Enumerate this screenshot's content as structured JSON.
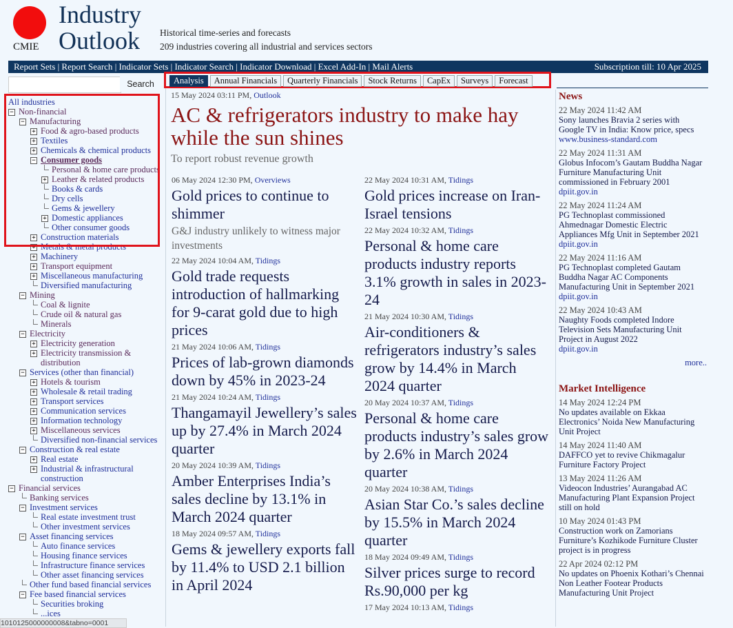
{
  "header": {
    "logo_text": "CMIE",
    "title_line1": "Industry",
    "title_line2": "Outlook",
    "tagline1": "Historical time-series and forecasts",
    "tagline2": "209 industries covering all industrial and services sectors"
  },
  "nav": {
    "links": [
      "Report Sets",
      "Report Search",
      "Indicator Sets",
      "Indicator Search",
      "Indicator Download",
      "Excel Add-In",
      "Mail Alerts"
    ],
    "subscription": "Subscription till: 10 Apr 2025"
  },
  "search": {
    "value": "",
    "button": "Search"
  },
  "tabs": [
    {
      "label": "Analysis",
      "active": true
    },
    {
      "label": "Annual Financials"
    },
    {
      "label": "Quarterly Financials"
    },
    {
      "label": "Stock Returns"
    },
    {
      "label": "CapEx"
    },
    {
      "label": "Surveys"
    },
    {
      "label": "Forecast"
    }
  ],
  "tree": [
    {
      "label": "All industries",
      "depth": 0,
      "toggle": "none"
    },
    {
      "label": "Non-financial",
      "depth": 1,
      "toggle": "minus",
      "visited": true
    },
    {
      "label": "Manufacturing",
      "depth": 2,
      "toggle": "minus",
      "visited": true
    },
    {
      "label": "Food & agro-based products",
      "depth": 3,
      "toggle": "plus",
      "visited": true
    },
    {
      "label": "Textiles",
      "depth": 3,
      "toggle": "plus"
    },
    {
      "label": "Chemicals & chemical products",
      "depth": 3,
      "toggle": "plus"
    },
    {
      "label": "Consumer goods",
      "depth": 3,
      "toggle": "minus",
      "visited": true,
      "selected": true
    },
    {
      "label": "Personal & home care products",
      "depth": 4,
      "toggle": "leaf",
      "visited": true
    },
    {
      "label": "Leather & related products",
      "depth": 4,
      "toggle": "plus",
      "visited": true
    },
    {
      "label": "Books & cards",
      "depth": 4,
      "toggle": "leaf"
    },
    {
      "label": "Dry cells",
      "depth": 4,
      "toggle": "leaf"
    },
    {
      "label": "Gems & jewellery",
      "depth": 4,
      "toggle": "leaf"
    },
    {
      "label": "Domestic appliances",
      "depth": 4,
      "toggle": "plus"
    },
    {
      "label": "Other consumer goods",
      "depth": 4,
      "toggle": "leaf"
    },
    {
      "label": "Construction materials",
      "depth": 3,
      "toggle": "plus"
    },
    {
      "label": "Metals & metal products",
      "depth": 3,
      "toggle": "plus"
    },
    {
      "label": "Machinery",
      "depth": 3,
      "toggle": "plus"
    },
    {
      "label": "Transport equipment",
      "depth": 3,
      "toggle": "plus",
      "visited": true
    },
    {
      "label": "Miscellaneous manufacturing",
      "depth": 3,
      "toggle": "plus"
    },
    {
      "label": "Diversified manufacturing",
      "depth": 3,
      "toggle": "leaf"
    },
    {
      "label": "Mining",
      "depth": 2,
      "toggle": "minus",
      "visited": true
    },
    {
      "label": "Coal & lignite",
      "depth": 3,
      "toggle": "leaf",
      "visited": true
    },
    {
      "label": "Crude oil & natural gas",
      "depth": 3,
      "toggle": "leaf",
      "visited": true
    },
    {
      "label": "Minerals",
      "depth": 3,
      "toggle": "leaf",
      "visited": true
    },
    {
      "label": "Electricity",
      "depth": 2,
      "toggle": "minus",
      "visited": true
    },
    {
      "label": "Electricity generation",
      "depth": 3,
      "toggle": "plus",
      "visited": true
    },
    {
      "label": "Electricity transmission & distribution",
      "depth": 3,
      "toggle": "plus",
      "visited": true
    },
    {
      "label": "Services (other than financial)",
      "depth": 2,
      "toggle": "minus"
    },
    {
      "label": "Hotels & tourism",
      "depth": 3,
      "toggle": "plus",
      "visited": true
    },
    {
      "label": "Wholesale & retail trading",
      "depth": 3,
      "toggle": "plus"
    },
    {
      "label": "Transport services",
      "depth": 3,
      "toggle": "plus"
    },
    {
      "label": "Communication services",
      "depth": 3,
      "toggle": "plus"
    },
    {
      "label": "Information technology",
      "depth": 3,
      "toggle": "plus"
    },
    {
      "label": "Miscellaneous services",
      "depth": 3,
      "toggle": "plus",
      "visited": true
    },
    {
      "label": "Diversified non-financial services",
      "depth": 3,
      "toggle": "leaf"
    },
    {
      "label": "Construction & real estate",
      "depth": 2,
      "toggle": "minus"
    },
    {
      "label": "Real estate",
      "depth": 3,
      "toggle": "plus"
    },
    {
      "label": "Industrial & infrastructural construction",
      "depth": 3,
      "toggle": "plus"
    },
    {
      "label": "Financial services",
      "depth": 1,
      "toggle": "minus",
      "visited": true
    },
    {
      "label": "Banking services",
      "depth": 2,
      "toggle": "leaf",
      "visited": true
    },
    {
      "label": "Investment services",
      "depth": 2,
      "toggle": "minus"
    },
    {
      "label": "Real estate investment trust",
      "depth": 3,
      "toggle": "leaf"
    },
    {
      "label": "Other investment services",
      "depth": 3,
      "toggle": "leaf"
    },
    {
      "label": "Asset financing services",
      "depth": 2,
      "toggle": "minus"
    },
    {
      "label": "Auto finance services",
      "depth": 3,
      "toggle": "leaf"
    },
    {
      "label": "Housing finance services",
      "depth": 3,
      "toggle": "leaf"
    },
    {
      "label": "Infrastructure finance services",
      "depth": 3,
      "toggle": "leaf"
    },
    {
      "label": "Other asset financing services",
      "depth": 3,
      "toggle": "leaf"
    },
    {
      "label": "Other fund based financial services",
      "depth": 2,
      "toggle": "leaf"
    },
    {
      "label": "Fee based financial services",
      "depth": 2,
      "toggle": "minus"
    },
    {
      "label": "Securities broking",
      "depth": 3,
      "toggle": "leaf"
    },
    {
      "label": "...ices",
      "depth": 3,
      "toggle": "leaf"
    }
  ],
  "hero": {
    "date": "15 May 2024 03:11 PM, ",
    "source": "Outlook",
    "title": "AC & refrigerators industry to make hay while the sun shines",
    "subtitle": "To report robust revenue growth"
  },
  "articles_left": [
    {
      "date": "06 May 2024 12:30 PM, ",
      "source": "Overviews",
      "title": "Gold prices to continue to shimmer",
      "subtitle": "G&J industry unlikely to witness major investments"
    },
    {
      "date": "22 May 2024 10:04 AM, ",
      "source": "Tidings",
      "title": "Gold trade requests introduction of hallmarking for 9-carat gold due to high prices"
    },
    {
      "date": "21 May 2024 10:06 AM, ",
      "source": "Tidings",
      "title": "Prices of lab-grown diamonds down by 45% in 2023-24"
    },
    {
      "date": "21 May 2024 10:24 AM, ",
      "source": "Tidings",
      "title": "Thangamayil Jewellery’s sales up by 27.4% in March 2024 quarter"
    },
    {
      "date": "20 May 2024 10:39 AM, ",
      "source": "Tidings",
      "title": "Amber Enterprises India’s sales decline by 13.1% in March 2024 quarter"
    },
    {
      "date": "18 May 2024 09:57 AM, ",
      "source": "Tidings",
      "title": "Gems & jewellery exports fall by 11.4% to USD 2.1 billion in April 2024"
    }
  ],
  "articles_right": [
    {
      "date": "22 May 2024 10:31 AM, ",
      "source": "Tidings",
      "title": "Gold prices increase on Iran-Israel tensions"
    },
    {
      "date": "22 May 2024 10:32 AM, ",
      "source": "Tidings",
      "title": "Personal & home care products industry reports 3.1% growth in sales in 2023-24"
    },
    {
      "date": "21 May 2024 10:30 AM, ",
      "source": "Tidings",
      "title": "Air-conditioners & refrigerators industry’s sales grow by 14.4% in March 2024 quarter"
    },
    {
      "date": "20 May 2024 10:37 AM, ",
      "source": "Tidings",
      "title": "Personal & home care products industry’s sales grow by 2.6% in March 2024 quarter"
    },
    {
      "date": "20 May 2024 10:38 AM, ",
      "source": "Tidings",
      "title": "Asian Star Co.’s sales decline by 15.5% in March 2024 quarter"
    },
    {
      "date": "18 May 2024 09:49 AM, ",
      "source": "Tidings",
      "title": "Silver prices surge to record Rs.90,000 per kg"
    },
    {
      "date": "17 May 2024 10:13 AM, ",
      "source": "Tidings",
      "title": ""
    }
  ],
  "news": {
    "heading": "News",
    "more": "more..",
    "items": [
      {
        "date": "22 May 2024 11:42 AM",
        "title": "Sony launches Bravia 2 series with Google TV in India: Know price, specs",
        "source": "www.business-standard.com"
      },
      {
        "date": "22 May 2024 11:31 AM",
        "title": "Globus Infocom’s Gautam Buddha Nagar Furniture Manufacturing Unit commissioned in February 2001",
        "source": "dpiit.gov.in"
      },
      {
        "date": "22 May 2024 11:24 AM",
        "title": "PG Technoplast commissioned Ahmednagar Domestic Electric Appliances Mfg Unit in September 2021",
        "source": "dpiit.gov.in"
      },
      {
        "date": "22 May 2024 11:16 AM",
        "title": "PG Technoplast completed Gautam Buddha Nagar AC Components Manufacturing Unit in September 2021",
        "source": "dpiit.gov.in"
      },
      {
        "date": "22 May 2024 10:43 AM",
        "title": "Naughty Foods completed Indore Television Sets Manufacturing Unit Project in August 2022",
        "source": "dpiit.gov.in"
      }
    ]
  },
  "market_intelligence": {
    "heading": "Market Intelligence",
    "items": [
      {
        "date": "14 May 2024 12:24 PM",
        "title": "No updates available on Ekkaa Electronics’ Noida New Manufacturing Unit Project"
      },
      {
        "date": "14 May 2024 11:40 AM",
        "title": "DAFFCO yet to revive Chikmagalur Furniture Factory Project"
      },
      {
        "date": "13 May 2024 11:26 AM",
        "title": "Videocon Industries’ Aurangabad AC Manufacturing Plant Expansion Project still on hold"
      },
      {
        "date": "10 May 2024 01:43 PM",
        "title": "Construction work on Zamorians Furniture’s Kozhikode Furniture Cluster project is in progress"
      },
      {
        "date": "22 Apr 2024 02:12 PM",
        "title": "No updates on Phoenix Kothari’s Chennai Non Leather Footear Products Manufacturing Unit Project"
      }
    ]
  },
  "status_bar": "1010125000000008&tabno=0001",
  "colors": {
    "navbar": "#0f3660",
    "headline": "#8b1414",
    "logo": "#f20d0d",
    "highlight": "#e0131b"
  }
}
